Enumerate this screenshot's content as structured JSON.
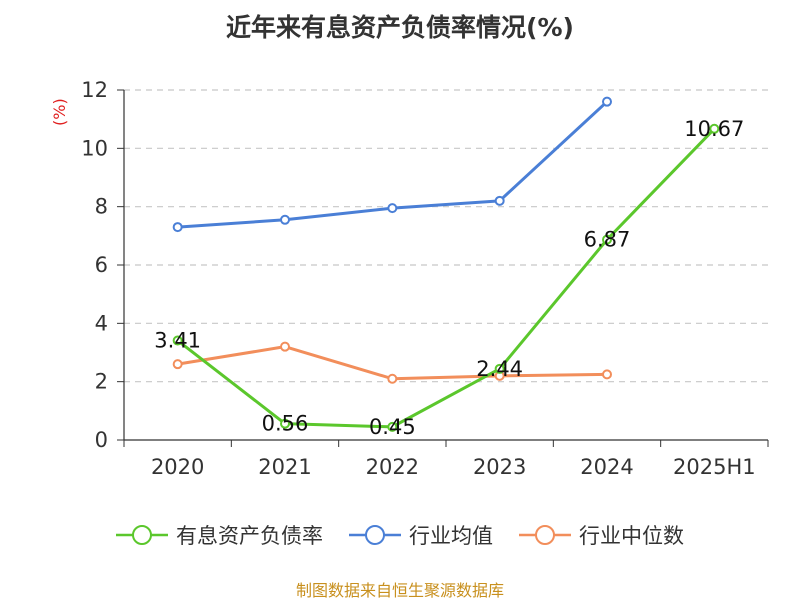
{
  "title": "近年来有息资产负债率情况(%)",
  "ylabel": "(%)",
  "source": "制图数据来自恒生聚源数据库",
  "chart_data": {
    "type": "line",
    "title": "近年来有息资产负债率情况(%)",
    "xlabel": "",
    "ylabel": "(%)",
    "categories": [
      "2020",
      "2021",
      "2022",
      "2023",
      "2024",
      "2025H1"
    ],
    "ylim": [
      0,
      12
    ],
    "yticks": [
      0,
      2,
      4,
      6,
      8,
      10,
      12
    ],
    "grid": true,
    "legend_position": "bottom",
    "series": [
      {
        "name": "有息资产负债率",
        "color": "#5bc72c",
        "values": [
          3.41,
          0.56,
          0.45,
          2.44,
          6.87,
          10.67
        ],
        "labels": [
          "3.41",
          "0.56",
          "0.45",
          "2.44",
          "6.87",
          "10.67"
        ]
      },
      {
        "name": "行业均值",
        "color": "#4a7fd6",
        "values": [
          7.3,
          7.55,
          7.95,
          8.2,
          11.6,
          null
        ]
      },
      {
        "name": "行业中位数",
        "color": "#f28e5b",
        "values": [
          2.6,
          3.2,
          2.1,
          2.2,
          2.25,
          null
        ]
      }
    ]
  }
}
